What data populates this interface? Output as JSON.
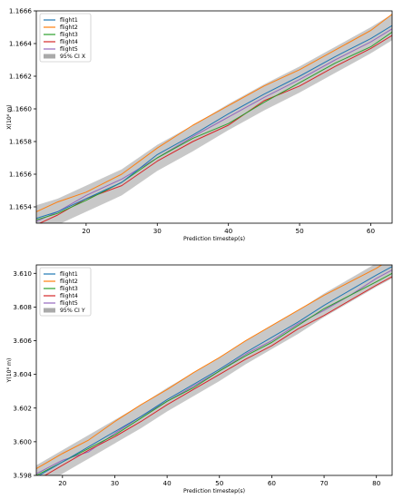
{
  "chart_data": [
    {
      "type": "line",
      "title": "",
      "xlabel": "Prediction timestep(s)",
      "ylabel": "X(10⁶ m)",
      "xlim": [
        13,
        63
      ],
      "ylim": [
        1.1653,
        1.1666
      ],
      "xticks": [
        20,
        30,
        40,
        50,
        60
      ],
      "yticks": [
        1.1654,
        1.1656,
        1.1658,
        1.166,
        1.1662,
        1.1664,
        1.1666
      ],
      "ytick_labels": [
        "1.1654",
        "1.1656",
        "1.1658",
        "1.1660",
        "1.1662",
        "1.1664",
        "1.1666"
      ],
      "grid": false,
      "legend_position": "upper-left",
      "x": [
        13,
        16,
        20,
        25,
        30,
        35,
        40,
        45,
        50,
        55,
        60,
        63
      ],
      "series": [
        {
          "name": "flight1",
          "color": "#1f77b4",
          "values": [
            1.16533,
            1.16537,
            1.16545,
            1.16555,
            1.16572,
            1.16584,
            1.16597,
            1.16609,
            1.1662,
            1.16632,
            1.16643,
            1.16651
          ]
        },
        {
          "name": "flight2",
          "color": "#ff7f0e",
          "values": [
            1.16537,
            1.16543,
            1.16549,
            1.1656,
            1.16576,
            1.1659,
            1.16602,
            1.16614,
            1.16624,
            1.16636,
            1.16648,
            1.16658
          ]
        },
        {
          "name": "flight3",
          "color": "#2ca02c",
          "values": [
            1.16532,
            1.16536,
            1.16544,
            1.16555,
            1.1657,
            1.16582,
            1.16591,
            1.16604,
            1.16616,
            1.16628,
            1.16638,
            1.16647
          ]
        },
        {
          "name": "flight4",
          "color": "#d62728",
          "values": [
            1.16529,
            1.16535,
            1.16545,
            1.16553,
            1.16568,
            1.1658,
            1.1659,
            1.16605,
            1.16614,
            1.16626,
            1.16637,
            1.16645
          ]
        },
        {
          "name": "flight5",
          "color": "#9467bd",
          "values": [
            1.16531,
            1.16537,
            1.16547,
            1.16557,
            1.1657,
            1.16583,
            1.16595,
            1.16607,
            1.16618,
            1.1663,
            1.16641,
            1.16649
          ]
        }
      ],
      "ci": {
        "name": "95% CI X",
        "color": "#aaaaaa",
        "lower": [
          1.16525,
          1.16529,
          1.16537,
          1.16547,
          1.16562,
          1.16574,
          1.16587,
          1.16599,
          1.1661,
          1.16622,
          1.16634,
          1.16642
        ],
        "upper": [
          1.16541,
          1.16545,
          1.16553,
          1.16563,
          1.16578,
          1.1659,
          1.16603,
          1.16615,
          1.16626,
          1.16638,
          1.1665,
          1.16658
        ]
      }
    },
    {
      "type": "line",
      "title": "",
      "xlabel": "Prediction timestep(s)",
      "ylabel": "Y(10⁶ m)",
      "xlim": [
        15,
        83
      ],
      "ylim": [
        3.598,
        3.6105
      ],
      "xticks": [
        20,
        30,
        40,
        50,
        60,
        70,
        80
      ],
      "yticks": [
        3.598,
        3.6,
        3.602,
        3.604,
        3.606,
        3.608,
        3.61
      ],
      "ytick_labels": [
        "3.598",
        "3.600",
        "3.602",
        "3.604",
        "3.606",
        "3.608",
        "3.610"
      ],
      "grid": false,
      "legend_position": "upper-left",
      "x": [
        15,
        20,
        25,
        30,
        35,
        40,
        45,
        50,
        55,
        60,
        65,
        70,
        75,
        80,
        83
      ],
      "series": [
        {
          "name": "flight1",
          "color": "#1f77b4",
          "values": [
            3.5979,
            3.5988,
            3.5997,
            3.6006,
            3.6015,
            3.6025,
            3.6034,
            3.6043,
            3.6053,
            3.6062,
            3.6071,
            3.6081,
            3.609,
            3.6099,
            3.6104
          ]
        },
        {
          "name": "flight2",
          "color": "#ff7f0e",
          "values": [
            3.5984,
            3.5993,
            3.6001,
            3.6012,
            3.6022,
            3.6031,
            3.6041,
            3.605,
            3.606,
            3.6069,
            3.6078,
            3.6087,
            3.6095,
            3.6103,
            3.6109
          ]
        },
        {
          "name": "flight3",
          "color": "#2ca02c",
          "values": [
            3.598,
            3.5988,
            3.5996,
            3.6004,
            3.6014,
            3.6024,
            3.6032,
            3.6042,
            3.6051,
            3.6059,
            3.6069,
            3.6079,
            3.6087,
            3.6095,
            3.61
          ]
        },
        {
          "name": "flight4",
          "color": "#d62728",
          "values": [
            3.5977,
            3.5986,
            3.5995,
            3.6003,
            3.6012,
            3.6022,
            3.6031,
            3.604,
            3.6049,
            3.6057,
            3.6067,
            3.6075,
            3.6084,
            3.6093,
            3.6098
          ]
        },
        {
          "name": "flight5",
          "color": "#9467bd",
          "values": [
            3.5981,
            3.5989,
            3.5994,
            3.6005,
            3.6015,
            3.6024,
            3.6033,
            3.6042,
            3.6052,
            3.606,
            3.607,
            3.6078,
            3.6087,
            3.6097,
            3.6102
          ]
        }
      ],
      "ci": {
        "name": "95% CI Y",
        "color": "#aaaaaa",
        "lower": [
          3.5972,
          3.5981,
          3.599,
          3.5999,
          3.6008,
          3.6018,
          3.6027,
          3.6036,
          3.6046,
          3.6055,
          3.6064,
          3.6074,
          3.6083,
          3.6092,
          3.6097
        ],
        "upper": [
          3.5986,
          3.5995,
          3.6004,
          3.6013,
          3.6022,
          3.6032,
          3.6041,
          3.605,
          3.606,
          3.6069,
          3.6078,
          3.6088,
          3.6097,
          3.6106,
          3.6111
        ]
      }
    }
  ]
}
